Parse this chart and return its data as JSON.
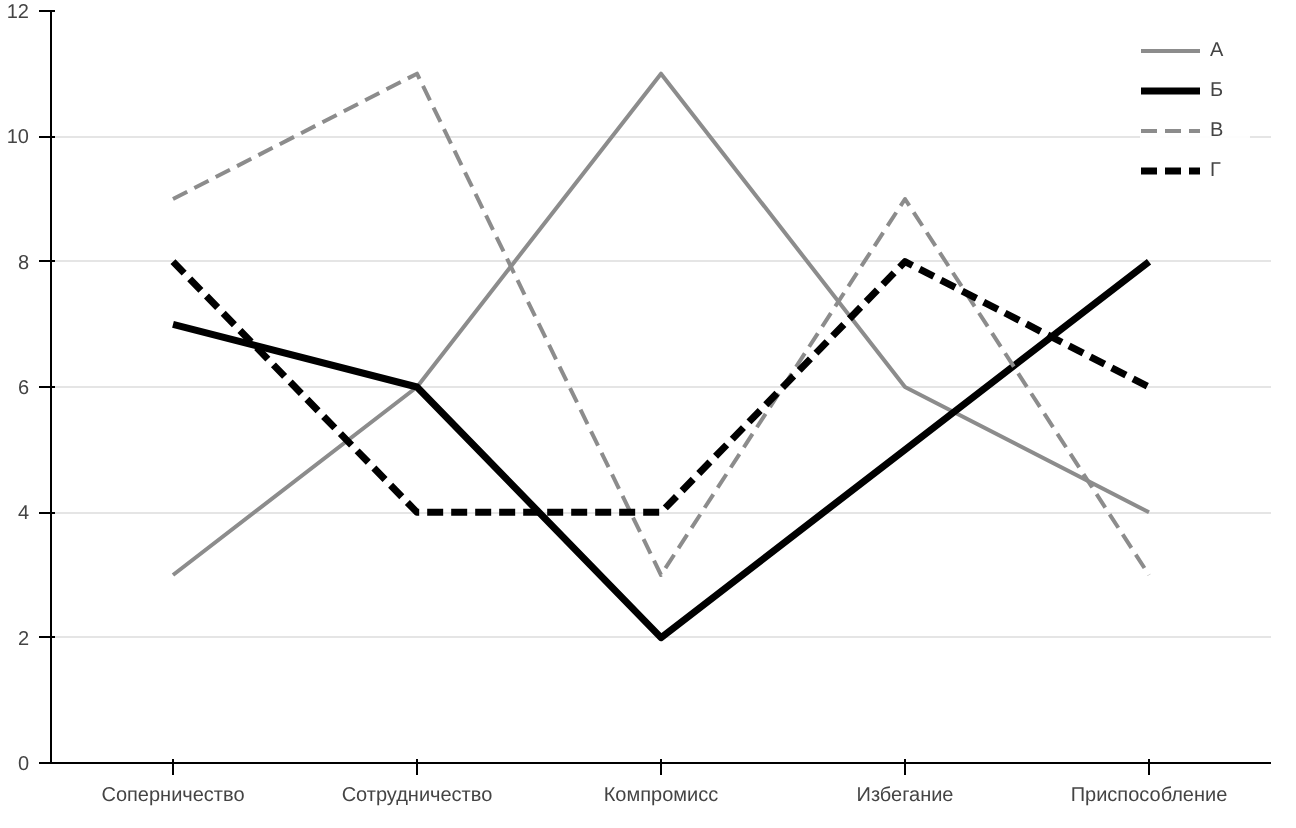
{
  "chart_data": {
    "type": "line",
    "categories": [
      "Соперничество",
      "Сотрудничество",
      "Компромисс",
      "Избегание",
      "Приспособление"
    ],
    "series": [
      {
        "name": "А",
        "color": "#8c8c8c",
        "values": [
          3,
          6,
          11,
          6,
          4
        ],
        "line_style": "solid"
      },
      {
        "name": "Б",
        "color": "#000000",
        "values": [
          7,
          6,
          2,
          5,
          8
        ],
        "line_style": "solid"
      },
      {
        "name": "В",
        "color": "#8c8c8c",
        "values": [
          9,
          11,
          3,
          9,
          3
        ],
        "line_style": "dashed"
      },
      {
        "name": "Г",
        "color": "#000000",
        "values": [
          8,
          4,
          4,
          8,
          6
        ],
        "line_style": "dashed"
      }
    ],
    "ylim": [
      0,
      12
    ],
    "yticks": [
      0,
      2,
      4,
      6,
      8,
      10,
      12
    ],
    "grid": "y",
    "legend": "top right",
    "marker": "none"
  }
}
